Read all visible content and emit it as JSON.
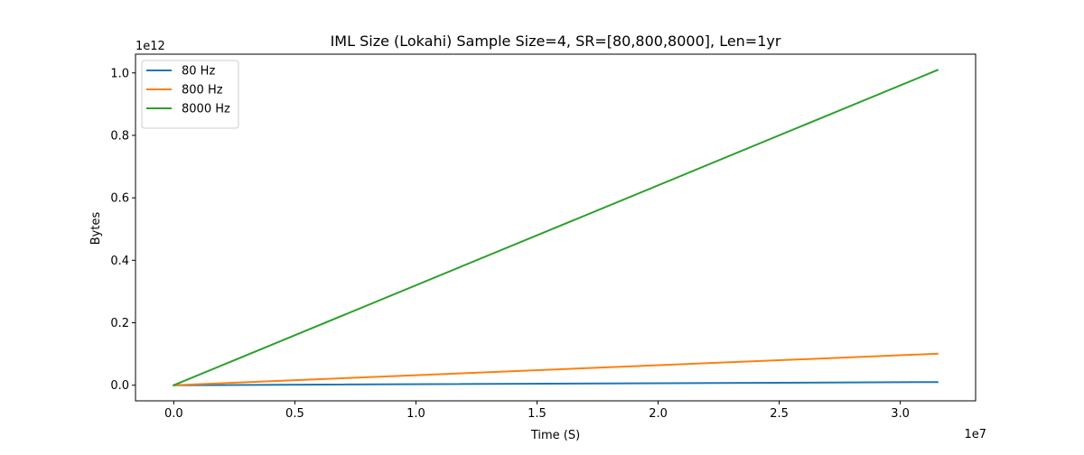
{
  "chart_data": {
    "type": "line",
    "title": "IML Size (Lokahi) Sample Size=4, SR=[80,800,8000], Len=1yr",
    "xlabel": "Time (S)",
    "ylabel": "Bytes",
    "x_offset_text": "1e7",
    "y_offset_text": "1e12",
    "xlim": [
      -0.158,
      3.311
    ],
    "ylim": [
      -0.05,
      1.06
    ],
    "xticks": [
      {
        "value": 0.0,
        "label": "0.0"
      },
      {
        "value": 0.5,
        "label": "0.5"
      },
      {
        "value": 1.0,
        "label": "1.0"
      },
      {
        "value": 1.5,
        "label": "1.5"
      },
      {
        "value": 2.0,
        "label": "2.0"
      },
      {
        "value": 2.5,
        "label": "2.5"
      },
      {
        "value": 3.0,
        "label": "3.0"
      }
    ],
    "yticks": [
      {
        "value": 0.0,
        "label": "0.0"
      },
      {
        "value": 0.2,
        "label": "0.2"
      },
      {
        "value": 0.4,
        "label": "0.4"
      },
      {
        "value": 0.6,
        "label": "0.6"
      },
      {
        "value": 0.8,
        "label": "0.8"
      },
      {
        "value": 1.0,
        "label": "1.0"
      }
    ],
    "grid": false,
    "legend_position": "upper-left",
    "series": [
      {
        "name": "80 Hz",
        "color": "#1f77b4",
        "x": [
          0,
          3.1536
        ],
        "y": [
          0,
          0.0101
        ]
      },
      {
        "name": "800 Hz",
        "color": "#ff7f0e",
        "x": [
          0,
          3.1536
        ],
        "y": [
          0,
          0.1009
        ]
      },
      {
        "name": "8000 Hz",
        "color": "#2ca02c",
        "x": [
          0,
          3.1536
        ],
        "y": [
          0,
          1.0092
        ]
      }
    ]
  }
}
